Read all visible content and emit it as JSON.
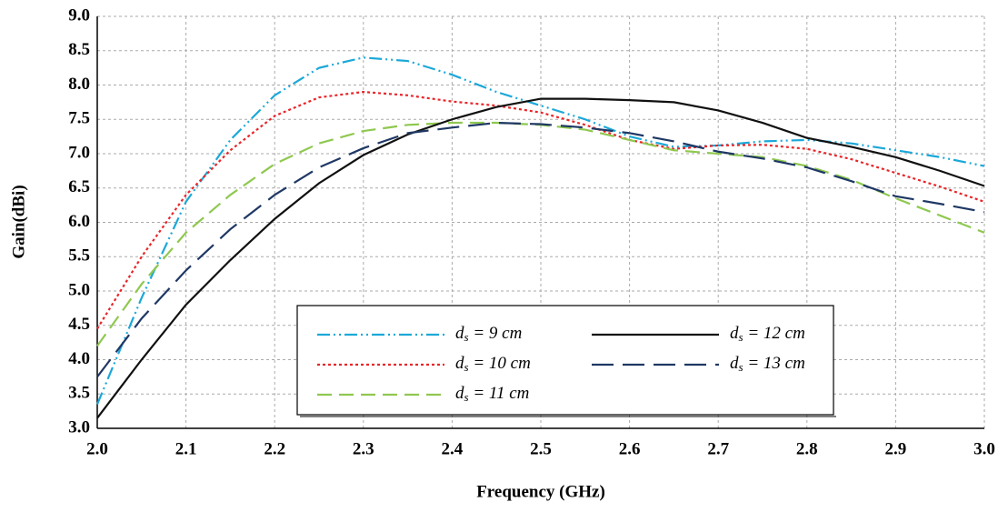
{
  "chart_data": {
    "type": "line",
    "xlabel": "Frequency (GHz)",
    "ylabel": "Gain(dBi)",
    "x": [
      2.0,
      2.05,
      2.1,
      2.15,
      2.2,
      2.25,
      2.3,
      2.35,
      2.4,
      2.45,
      2.5,
      2.55,
      2.6,
      2.65,
      2.7,
      2.75,
      2.8,
      2.85,
      2.9,
      2.95,
      3.0
    ],
    "series": [
      {
        "name": "ds = 9 cm",
        "color": "#1ba8d8",
        "linestyle": "dashdotdot",
        "values": [
          3.35,
          4.9,
          6.3,
          7.2,
          7.85,
          8.25,
          8.4,
          8.35,
          8.15,
          7.9,
          7.7,
          7.5,
          7.25,
          7.1,
          7.12,
          7.18,
          7.2,
          7.15,
          7.05,
          6.95,
          6.82
        ]
      },
      {
        "name": "ds = 10 cm",
        "color": "#e8262a",
        "linestyle": "dotted",
        "values": [
          4.45,
          5.5,
          6.4,
          7.05,
          7.55,
          7.82,
          7.9,
          7.85,
          7.76,
          7.7,
          7.6,
          7.42,
          7.2,
          7.07,
          7.12,
          7.13,
          7.07,
          6.92,
          6.72,
          6.52,
          6.3
        ]
      },
      {
        "name": "ds = 11 cm",
        "color": "#8fc850",
        "linestyle": "dashed",
        "values": [
          4.2,
          5.1,
          5.85,
          6.4,
          6.85,
          7.15,
          7.33,
          7.42,
          7.45,
          7.45,
          7.42,
          7.35,
          7.2,
          7.05,
          7.0,
          6.95,
          6.82,
          6.62,
          6.35,
          6.1,
          5.85
        ]
      },
      {
        "name": "ds = 12 cm",
        "color": "#111111",
        "linestyle": "solid",
        "values": [
          3.15,
          4.0,
          4.8,
          5.45,
          6.05,
          6.57,
          6.98,
          7.28,
          7.5,
          7.68,
          7.8,
          7.8,
          7.78,
          7.75,
          7.63,
          7.45,
          7.23,
          7.1,
          6.95,
          6.75,
          6.53
        ]
      },
      {
        "name": "ds = 13 cm",
        "color": "#1f3864",
        "linestyle": "longdash",
        "values": [
          3.75,
          4.6,
          5.3,
          5.9,
          6.4,
          6.8,
          7.08,
          7.3,
          7.38,
          7.45,
          7.43,
          7.38,
          7.3,
          7.18,
          7.03,
          6.93,
          6.8,
          6.6,
          6.38,
          6.27,
          6.15
        ]
      }
    ],
    "xlim": [
      2.0,
      3.0
    ],
    "xticks": [
      {
        "value": 2,
        "label": "2.0"
      },
      2.1,
      2.2,
      2.3,
      2.4,
      2.5,
      2.6,
      2.7,
      2.8,
      2.9,
      {
        "value": 3,
        "label": "3.0"
      }
    ],
    "ylim": [
      3.0,
      9.0
    ],
    "yticks": [
      {
        "value": 3,
        "label": "3.0"
      },
      3.5,
      {
        "value": 4,
        "label": "4.0"
      },
      4.5,
      {
        "value": 5,
        "label": "5.0"
      },
      5.5,
      {
        "value": 6,
        "label": "6.0"
      },
      6.5,
      {
        "value": 7,
        "label": "7.0"
      },
      7.5,
      {
        "value": 8,
        "label": "8.0"
      },
      8.5,
      {
        "value": 9,
        "label": "9.0"
      }
    ],
    "grid": true,
    "legend": "lower center"
  }
}
